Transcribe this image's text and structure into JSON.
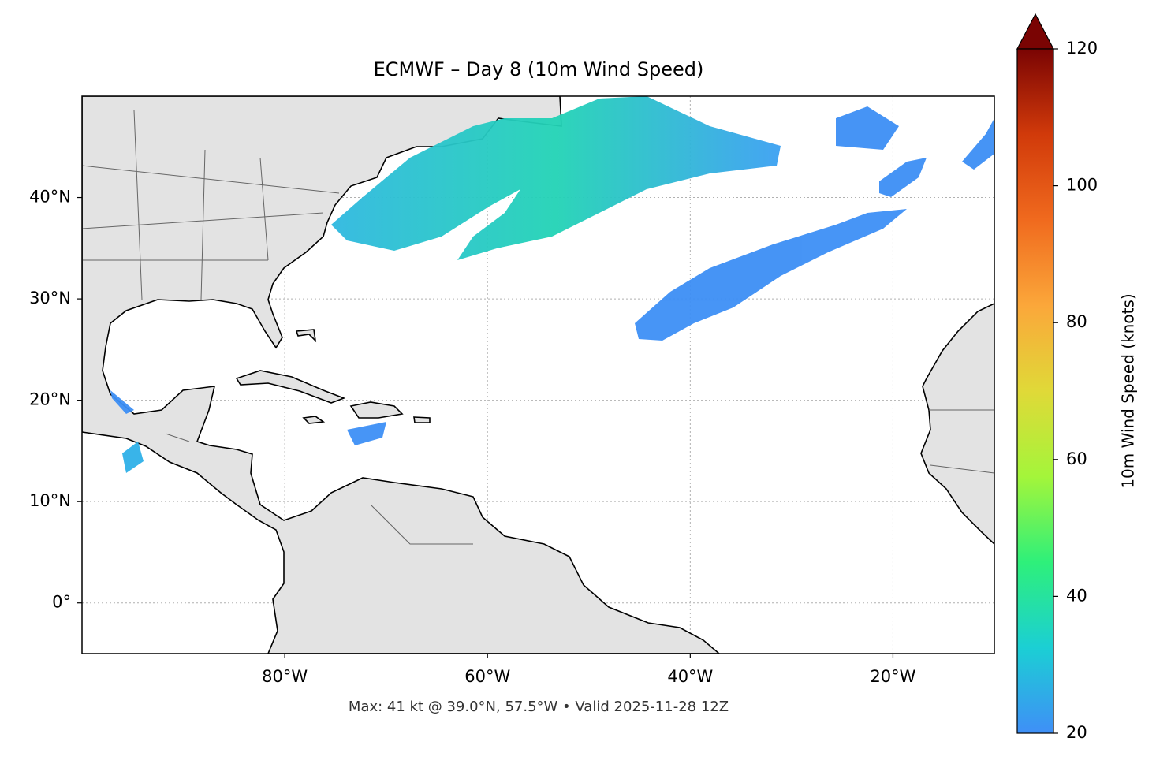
{
  "chart_data": {
    "type": "map",
    "title": "ECMWF – Day 8 (10m Wind Speed)",
    "footer": "Max: 41 kt @ 39.0°N, 57.5°W • Valid 2025-11-28 12Z",
    "xlim": [
      -100,
      -10
    ],
    "ylim": [
      -5,
      50
    ],
    "xticks": [
      {
        "value": -80,
        "label": "80°W"
      },
      {
        "value": -60,
        "label": "60°W"
      },
      {
        "value": -40,
        "label": "40°W"
      },
      {
        "value": -20,
        "label": "20°W"
      }
    ],
    "yticks": [
      {
        "value": 0,
        "label": "0°"
      },
      {
        "value": 10,
        "label": "10°N"
      },
      {
        "value": 20,
        "label": "20°N"
      },
      {
        "value": 30,
        "label": "30°N"
      },
      {
        "value": 40,
        "label": "40°N"
      }
    ],
    "grid": true,
    "colorbar": {
      "label": "10m Wind Speed (knots)",
      "lim": [
        20,
        120
      ],
      "ticks": [
        20,
        40,
        60,
        80,
        100,
        120
      ],
      "colors": [
        "#3f8ff7",
        "#1bcfd4",
        "#2ef07a",
        "#a4f53a",
        "#e0d938",
        "#fba73a",
        "#f06a1e",
        "#d13a0a",
        "#7a0403"
      ]
    }
  }
}
